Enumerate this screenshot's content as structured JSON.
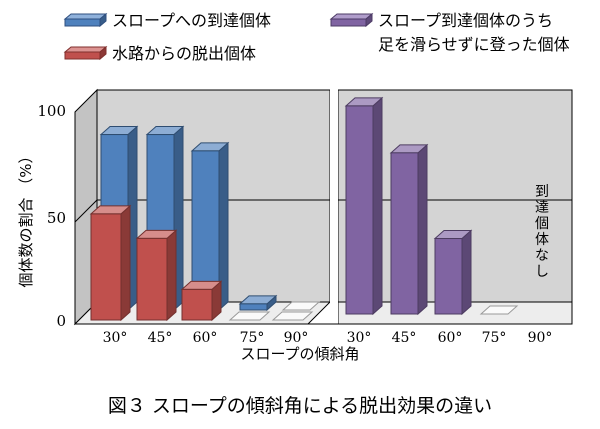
{
  "chart_data": {
    "type": "bar",
    "title": "",
    "xlabel": "スロープの傾斜角",
    "ylabel": "個体数の割合 （%）",
    "ylim": [
      0,
      100
    ],
    "yticks": [
      "0",
      "50",
      "100"
    ],
    "grid": true,
    "legend_position": "top",
    "caption": "図３ スロープの傾斜角による脱出効果の違い",
    "panels": [
      {
        "categories": [
          "30°",
          "45°",
          "60°",
          "75°",
          "90°"
        ],
        "series": [
          {
            "name": "スロープへの到達個体",
            "color": "#4f81bd",
            "values": [
              86,
              86,
              78,
              3,
              0
            ]
          },
          {
            "name": "水路からの脱出個体",
            "color": "#c0504d",
            "values": [
              52,
              40,
              15,
              0,
              0
            ]
          }
        ]
      },
      {
        "categories": [
          "30°",
          "45°",
          "60°",
          "75°",
          "90°"
        ],
        "series": [
          {
            "name": "スロープ到達個体のうち足を滑らせずに登った個体",
            "color": "#8064a2",
            "values": [
              102,
              79,
              37,
              0,
              null
            ]
          }
        ],
        "annotation": "到達個体なし"
      }
    ]
  },
  "legend": [
    {
      "label": "スロープへの到達個体",
      "color": "#4f81bd"
    },
    {
      "label": "水路からの脱出個体",
      "color": "#c0504d"
    },
    {
      "label_line1": "スロープ到達個体のうち",
      "label_line2": "足を滑らせずに登った個体",
      "color": "#8064a2"
    }
  ]
}
